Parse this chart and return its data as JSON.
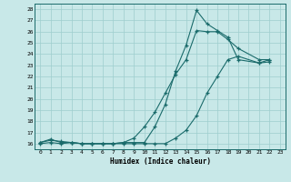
{
  "background_color": "#c8e8e8",
  "grid_color": "#9ecece",
  "line_color": "#1a6b6b",
  "xlabel": "Humidex (Indice chaleur)",
  "xlim_min": -0.5,
  "xlim_max": 23.5,
  "ylim_min": 15.5,
  "ylim_max": 28.5,
  "xticks": [
    0,
    1,
    2,
    3,
    4,
    5,
    6,
    7,
    8,
    9,
    10,
    11,
    12,
    13,
    14,
    15,
    16,
    17,
    18,
    19,
    20,
    21,
    22,
    23
  ],
  "yticks": [
    16,
    17,
    18,
    19,
    20,
    21,
    22,
    23,
    24,
    25,
    26,
    27,
    28
  ],
  "x_values": [
    0,
    1,
    2,
    3,
    4,
    5,
    6,
    7,
    8,
    9,
    10,
    11,
    12,
    13,
    14,
    15,
    16,
    17,
    18,
    19,
    21,
    22
  ],
  "series1": [
    16.1,
    16.4,
    16.1,
    16.1,
    16.0,
    16.0,
    16.0,
    16.0,
    16.1,
    16.1,
    16.1,
    17.5,
    19.5,
    22.5,
    24.8,
    27.9,
    26.7,
    26.1,
    25.5,
    23.5,
    23.2,
    23.5
  ],
  "series2": [
    16.0,
    16.1,
    16.0,
    16.1,
    16.0,
    16.0,
    16.0,
    16.0,
    16.0,
    16.0,
    16.0,
    16.0,
    16.0,
    16.5,
    17.2,
    18.5,
    20.5,
    22.0,
    23.5,
    23.8,
    23.2,
    23.3
  ],
  "series3": [
    16.1,
    16.3,
    16.2,
    16.1,
    16.0,
    16.0,
    16.0,
    16.0,
    16.1,
    16.5,
    17.5,
    18.8,
    20.5,
    22.2,
    23.5,
    26.1,
    26.0,
    26.0,
    25.3,
    24.5,
    23.5,
    23.5
  ]
}
